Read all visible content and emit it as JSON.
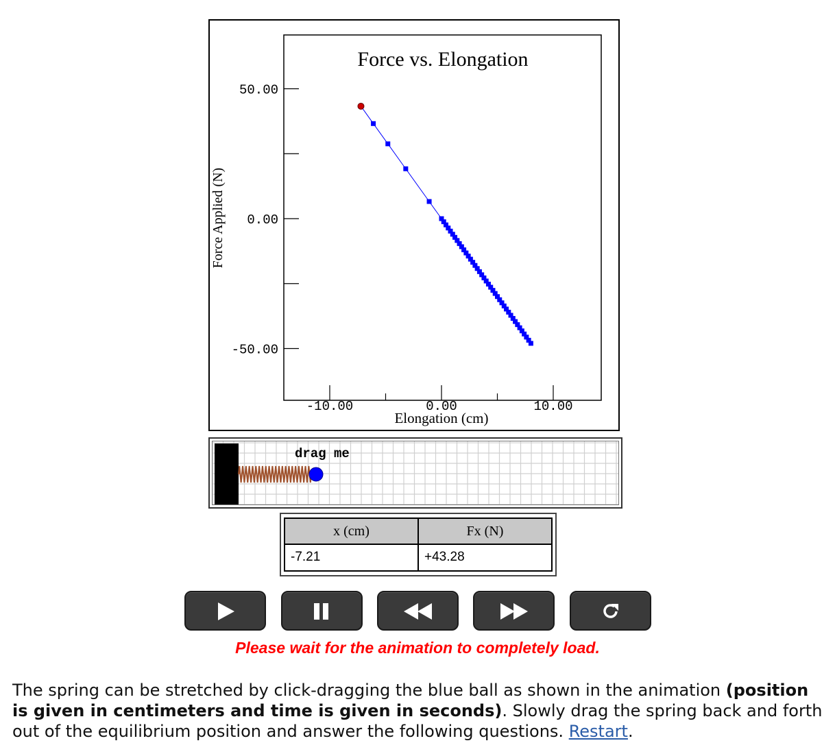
{
  "graph": {
    "chart_data": {
      "type": "scatter",
      "title": "Force vs. Elongation",
      "xlabel": "Elongation (cm)",
      "ylabel": "Force Applied (N)",
      "xlim": [
        -14,
        14
      ],
      "ylim": [
        -70,
        70
      ],
      "x_ticks": [
        "-10.00",
        "0.00",
        "10.00"
      ],
      "y_ticks": [
        "50.00",
        "0.00",
        "-50.00"
      ],
      "current_point": {
        "x": -7.21,
        "y": 43.28
      },
      "series": [
        {
          "color": "#0000ff",
          "x": [
            -7.21,
            -6.1,
            -4.8,
            -3.2,
            -1.1,
            0.0,
            0.2,
            0.4,
            0.6,
            0.8,
            1.0,
            1.2,
            1.4,
            1.6,
            1.8,
            2.0,
            2.2,
            2.4,
            2.6,
            2.8,
            3.0,
            3.2,
            3.4,
            3.6,
            3.8,
            4.0,
            4.2,
            4.4,
            4.6,
            4.8,
            5.0,
            5.2,
            5.4,
            5.6,
            5.8,
            6.0,
            6.2,
            6.4,
            6.6,
            6.8,
            7.0,
            7.2,
            7.4,
            7.6,
            7.8,
            8.0
          ],
          "y": [
            43.28,
            36.6,
            28.8,
            19.2,
            6.6,
            0.0,
            -1.2,
            -2.4,
            -3.6,
            -4.8,
            -6.0,
            -7.2,
            -8.4,
            -9.6,
            -10.8,
            -12.0,
            -13.2,
            -14.4,
            -15.6,
            -16.8,
            -18.0,
            -19.2,
            -20.4,
            -21.6,
            -22.8,
            -24.0,
            -25.2,
            -26.4,
            -27.6,
            -28.8,
            -30.0,
            -31.2,
            -32.4,
            -33.6,
            -34.8,
            -36.0,
            -37.2,
            -38.4,
            -39.6,
            -40.8,
            -42.0,
            -43.2,
            -44.4,
            -45.6,
            -46.8,
            -48.0
          ]
        }
      ]
    }
  },
  "drag": {
    "label": "drag me"
  },
  "table": {
    "col1_header": "x (cm)",
    "col2_header": "Fx (N)",
    "col1_value": "-7.21",
    "col2_value": "+43.28"
  },
  "controls": {
    "buttons": [
      "play-icon",
      "pause-icon",
      "rewind-icon",
      "fast-forward-icon",
      "reset-icon"
    ]
  },
  "status": "Please wait for the animation to completely load.",
  "instructions": {
    "part1": "The spring can be stretched by click-dragging the blue ball as shown in the animation ",
    "bold": "(position is given in centimeters and time is given in seconds)",
    "part2": ". Slowly drag the spring back and forth out of the equilibrium position and answer the following questions. ",
    "link": "Restart",
    "end": "."
  },
  "colors": {
    "data": "#0000ff",
    "current": "#cc0000",
    "spring": "#a0522d",
    "ball": "#0000ff",
    "status": "#ff0000",
    "link": "#2a5ca8"
  }
}
